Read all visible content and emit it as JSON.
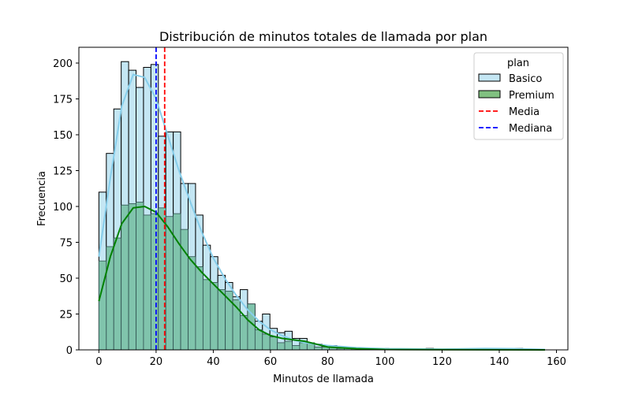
{
  "chart_data": {
    "type": "bar",
    "subtype": "histogram-overlaid-with-kde",
    "title": "Distribución de minutos totales de llamada por plan",
    "xlabel": "Minutos de llamada",
    "ylabel": "Frecuencia",
    "xlim": [
      -7,
      164
    ],
    "ylim": [
      0,
      211
    ],
    "xticks": [
      0,
      20,
      40,
      60,
      80,
      100,
      120,
      140,
      160
    ],
    "yticks": [
      0,
      25,
      50,
      75,
      100,
      125,
      150,
      175,
      200
    ],
    "grid": false,
    "bin_start": 0,
    "bin_width": 2.6,
    "legend": {
      "title": "plan",
      "position": "upper right",
      "entries": [
        {
          "label": "Basico",
          "kind": "patch",
          "color": "#87ceeb"
        },
        {
          "label": "Premium",
          "kind": "patch",
          "color": "#008000"
        },
        {
          "label": "Media",
          "kind": "dashed-line",
          "color": "#ff0000"
        },
        {
          "label": "Mediana",
          "kind": "dashed-line",
          "color": "#0000ff"
        }
      ]
    },
    "series": [
      {
        "name": "Basico",
        "color": "#87ceeb",
        "values": [
          110,
          137,
          168,
          201,
          195,
          183,
          197,
          199,
          149,
          152,
          152,
          116,
          116,
          94,
          73,
          65,
          52,
          47,
          37,
          42,
          32,
          20,
          25,
          15,
          12,
          13,
          8,
          8,
          3,
          4,
          2,
          3,
          2,
          1,
          1,
          1,
          0,
          0,
          1,
          0,
          0,
          0,
          0,
          0,
          1,
          0,
          0,
          0,
          0,
          0,
          0,
          0,
          0,
          0,
          0,
          0,
          1,
          0,
          0,
          0,
          0,
          0,
          0,
          0,
          0,
          0,
          0,
          0,
          0,
          0,
          0,
          0,
          0,
          0,
          0,
          0,
          1,
          1,
          0,
          0,
          0,
          0,
          0,
          0,
          0,
          0,
          1,
          0,
          0
        ]
      },
      {
        "name": "Premium",
        "color": "#008000",
        "values": [
          62,
          72,
          78,
          101,
          102,
          103,
          94,
          95,
          99,
          93,
          95,
          84,
          65,
          58,
          49,
          47,
          42,
          41,
          35,
          24,
          32,
          14,
          11,
          9,
          5,
          6,
          3,
          5,
          5,
          2,
          2,
          2,
          1,
          1,
          1,
          0,
          0,
          0,
          0,
          0,
          0,
          0,
          0,
          0,
          0,
          0,
          0,
          0,
          0,
          0,
          0,
          0,
          0,
          0,
          0,
          0,
          0,
          0,
          0,
          0,
          0,
          0,
          0,
          0,
          0,
          0,
          0,
          0,
          0,
          0,
          0,
          0,
          0,
          0,
          0,
          0,
          0,
          0,
          0,
          0,
          0,
          0,
          0,
          0,
          0,
          0,
          1,
          0,
          0
        ]
      }
    ],
    "kde": [
      {
        "name": "Basico",
        "color": "#87ceeb",
        "points": [
          [
            0,
            65
          ],
          [
            4,
            120
          ],
          [
            8,
            170
          ],
          [
            12,
            192
          ],
          [
            16,
            190
          ],
          [
            20,
            175
          ],
          [
            24,
            150
          ],
          [
            28,
            125
          ],
          [
            32,
            103
          ],
          [
            36,
            82
          ],
          [
            40,
            64
          ],
          [
            44,
            50
          ],
          [
            48,
            38
          ],
          [
            52,
            28
          ],
          [
            56,
            20
          ],
          [
            60,
            14
          ],
          [
            64,
            10
          ],
          [
            68,
            7
          ],
          [
            72,
            5
          ],
          [
            76,
            4
          ],
          [
            80,
            3
          ],
          [
            90,
            1.5
          ],
          [
            100,
            0.8
          ],
          [
            120,
            0.5
          ],
          [
            135,
            1
          ],
          [
            145,
            0.8
          ],
          [
            156,
            0.3
          ]
        ]
      },
      {
        "name": "Premium",
        "color": "#008000",
        "points": [
          [
            0,
            34
          ],
          [
            4,
            65
          ],
          [
            8,
            88
          ],
          [
            12,
            99
          ],
          [
            16,
            100
          ],
          [
            20,
            96
          ],
          [
            24,
            86
          ],
          [
            28,
            74
          ],
          [
            32,
            63
          ],
          [
            36,
            54
          ],
          [
            40,
            46
          ],
          [
            44,
            38
          ],
          [
            48,
            30
          ],
          [
            52,
            21
          ],
          [
            56,
            14
          ],
          [
            60,
            10
          ],
          [
            64,
            8
          ],
          [
            68,
            7
          ],
          [
            72,
            6
          ],
          [
            76,
            4
          ],
          [
            80,
            2
          ],
          [
            90,
            0.8
          ],
          [
            100,
            0.3
          ],
          [
            120,
            0.1
          ],
          [
            156,
            0
          ]
        ]
      }
    ],
    "reference_lines": [
      {
        "label": "Media",
        "x": 23,
        "color": "#ff0000",
        "style": "dashed"
      },
      {
        "label": "Mediana",
        "x": 20,
        "color": "#0000ff",
        "style": "dashed"
      }
    ]
  }
}
